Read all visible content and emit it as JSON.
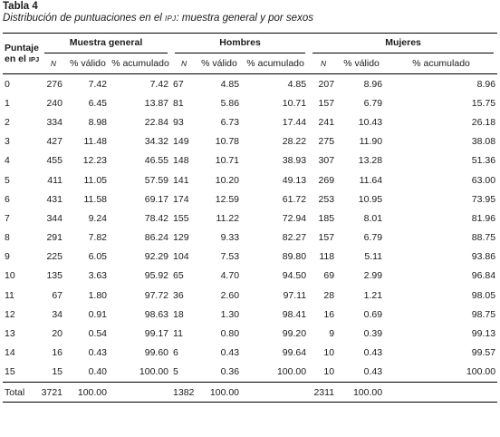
{
  "caption": {
    "title": "Tabla 4",
    "subtitle_a": "Distribución de puntuaciones en el ",
    "subtitle_sc": "IPJ",
    "subtitle_b": ": muestra general y por sexos"
  },
  "header": {
    "puntaje_line1": "Puntaje",
    "puntaje_line2a": "en el ",
    "puntaje_line2b": "IPJ",
    "groups": [
      "Muestra general",
      "Hombres",
      "Mujeres"
    ],
    "sub": [
      "N",
      "% válido",
      "% acumulado"
    ]
  },
  "rows": [
    {
      "p": "0",
      "g": [
        "276",
        "7.42",
        "7.42"
      ],
      "h": [
        "67",
        "4.85",
        "4.85"
      ],
      "m": [
        "207",
        "8.96",
        "8.96"
      ]
    },
    {
      "p": "1",
      "g": [
        "240",
        "6.45",
        "13.87"
      ],
      "h": [
        "81",
        "5.86",
        "10.71"
      ],
      "m": [
        "157",
        "6.79",
        "15.75"
      ]
    },
    {
      "p": "2",
      "g": [
        "334",
        "8.98",
        "22.84"
      ],
      "h": [
        "93",
        "6.73",
        "17.44"
      ],
      "m": [
        "241",
        "10.43",
        "26.18"
      ]
    },
    {
      "p": "3",
      "g": [
        "427",
        "11.48",
        "34.32"
      ],
      "h": [
        "149",
        "10.78",
        "28.22"
      ],
      "m": [
        "275",
        "11.90",
        "38.08"
      ]
    },
    {
      "p": "4",
      "g": [
        "455",
        "12.23",
        "46.55"
      ],
      "h": [
        "148",
        "10.71",
        "38.93"
      ],
      "m": [
        "307",
        "13.28",
        "51.36"
      ]
    },
    {
      "p": "5",
      "g": [
        "411",
        "11.05",
        "57.59"
      ],
      "h": [
        "141",
        "10.20",
        "49.13"
      ],
      "m": [
        "269",
        "11.64",
        "63.00"
      ]
    },
    {
      "p": "6",
      "g": [
        "431",
        "11.58",
        "69.17"
      ],
      "h": [
        "174",
        "12.59",
        "61.72"
      ],
      "m": [
        "253",
        "10.95",
        "73.95"
      ]
    },
    {
      "p": "7",
      "g": [
        "344",
        "9.24",
        "78.42"
      ],
      "h": [
        "155",
        "11.22",
        "72.94"
      ],
      "m": [
        "185",
        "8.01",
        "81.96"
      ]
    },
    {
      "p": "8",
      "g": [
        "291",
        "7.82",
        "86.24"
      ],
      "h": [
        "129",
        "9.33",
        "82.27"
      ],
      "m": [
        "157",
        "6.79",
        "88.75"
      ]
    },
    {
      "p": "9",
      "g": [
        "225",
        "6.05",
        "92.29"
      ],
      "h": [
        "104",
        "7.53",
        "89.80"
      ],
      "m": [
        "118",
        "5.11",
        "93.86"
      ]
    },
    {
      "p": "10",
      "g": [
        "135",
        "3.63",
        "95.92"
      ],
      "h": [
        "65",
        "4.70",
        "94.50"
      ],
      "m": [
        "69",
        "2.99",
        "96.84"
      ]
    },
    {
      "p": "11",
      "g": [
        "67",
        "1.80",
        "97.72"
      ],
      "h": [
        "36",
        "2.60",
        "97.11"
      ],
      "m": [
        "28",
        "1.21",
        "98.05"
      ]
    },
    {
      "p": "12",
      "g": [
        "34",
        "0.91",
        "98.63"
      ],
      "h": [
        "18",
        "1.30",
        "98.41"
      ],
      "m": [
        "16",
        "0.69",
        "98.75"
      ]
    },
    {
      "p": "13",
      "g": [
        "20",
        "0.54",
        "99.17"
      ],
      "h": [
        "11",
        "0.80",
        "99.20"
      ],
      "m": [
        "9",
        "0.39",
        "99.13"
      ]
    },
    {
      "p": "14",
      "g": [
        "16",
        "0.43",
        "99.60"
      ],
      "h": [
        "6",
        "0.43",
        "99.64"
      ],
      "m": [
        "10",
        "0.43",
        "99.57"
      ]
    },
    {
      "p": "15",
      "g": [
        "15",
        "0.40",
        "100.00"
      ],
      "h": [
        "5",
        "0.36",
        "100.00"
      ],
      "m": [
        "10",
        "0.43",
        "100.00"
      ]
    }
  ],
  "total": {
    "label": "Total",
    "g": [
      "3721",
      "100.00"
    ],
    "h": [
      "1382",
      "100.00"
    ],
    "m": [
      "2311",
      "100.00"
    ]
  }
}
